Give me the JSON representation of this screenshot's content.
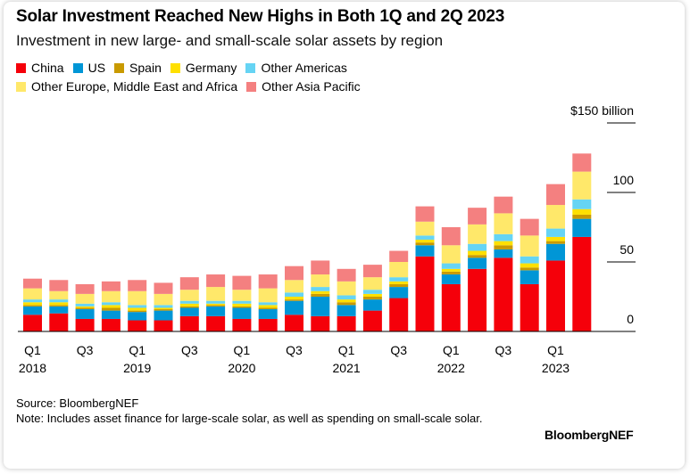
{
  "chart_data": {
    "type": "bar",
    "stacked": true,
    "title": "Solar Investment Reached New Highs in Both 1Q and 2Q 2023",
    "subtitle": "Investment in new large- and small-scale solar assets by region",
    "ylabel": "",
    "ylim": [
      0,
      150
    ],
    "yticks": [
      {
        "value": 150,
        "label": "$150 billion"
      },
      {
        "value": 100,
        "label": "100"
      },
      {
        "value": 50,
        "label": "50"
      },
      {
        "value": 0,
        "label": "0"
      }
    ],
    "grid": false,
    "legend_position": "top-left",
    "categories": [
      "1Q 2018",
      "2Q 2018",
      "3Q 2018",
      "4Q 2018",
      "1Q 2019",
      "2Q 2019",
      "3Q 2019",
      "4Q 2019",
      "1Q 2020",
      "2Q 2020",
      "3Q 2020",
      "4Q 2020",
      "1Q 2021",
      "2Q 2021",
      "3Q 2021",
      "4Q 2021",
      "1Q 2022",
      "2Q 2022",
      "3Q 2022",
      "4Q 2022",
      "1Q 2023",
      "2Q 2023"
    ],
    "x_tick_labels": [
      {
        "index": 0,
        "quarter": "Q1",
        "year": "2018"
      },
      {
        "index": 2,
        "quarter": "Q3",
        "year": ""
      },
      {
        "index": 4,
        "quarter": "Q1",
        "year": "2019"
      },
      {
        "index": 6,
        "quarter": "Q3",
        "year": ""
      },
      {
        "index": 8,
        "quarter": "Q1",
        "year": "2020"
      },
      {
        "index": 10,
        "quarter": "Q3",
        "year": ""
      },
      {
        "index": 12,
        "quarter": "Q1",
        "year": "2021"
      },
      {
        "index": 14,
        "quarter": "Q3",
        "year": ""
      },
      {
        "index": 16,
        "quarter": "Q1",
        "year": "2022"
      },
      {
        "index": 18,
        "quarter": "Q3",
        "year": ""
      },
      {
        "index": 20,
        "quarter": "Q1",
        "year": "2023"
      }
    ],
    "series": [
      {
        "name": "China",
        "color": "#f5000a",
        "values": [
          12,
          13,
          9,
          9,
          8,
          8,
          11,
          11,
          9,
          9,
          12,
          11,
          11,
          15,
          24,
          54,
          34,
          45,
          53,
          34,
          51,
          68
        ]
      },
      {
        "name": "US",
        "color": "#0096d6",
        "values": [
          6,
          5,
          7,
          6,
          6,
          7,
          6,
          7,
          8,
          7,
          10,
          14,
          8,
          8,
          8,
          8,
          7,
          8,
          6,
          10,
          12,
          13
        ]
      },
      {
        "name": "Spain",
        "color": "#c99a00",
        "values": [
          1,
          1,
          1,
          2,
          1,
          1,
          1,
          1,
          1,
          1,
          1,
          2,
          2,
          2,
          2,
          2,
          2,
          2,
          3,
          2,
          2,
          3
        ]
      },
      {
        "name": "Germany",
        "color": "#ffe000",
        "values": [
          2,
          2,
          1,
          2,
          2,
          1,
          2,
          1,
          2,
          2,
          2,
          2,
          2,
          2,
          2,
          2,
          2,
          3,
          3,
          3,
          3,
          4
        ]
      },
      {
        "name": "Other Americas",
        "color": "#66d4f4",
        "values": [
          2,
          2,
          2,
          2,
          2,
          2,
          2,
          2,
          2,
          2,
          3,
          3,
          3,
          3,
          3,
          3,
          4,
          5,
          5,
          5,
          6,
          7
        ]
      },
      {
        "name": "Other Europe, Middle East and Africa",
        "color": "#ffe86a",
        "values": [
          8,
          6,
          7,
          8,
          10,
          8,
          8,
          10,
          8,
          10,
          9,
          9,
          10,
          9,
          11,
          10,
          13,
          14,
          15,
          15,
          17,
          20
        ]
      },
      {
        "name": "Other Asia Pacific",
        "color": "#f48080",
        "values": [
          7,
          8,
          7,
          7,
          8,
          8,
          9,
          9,
          10,
          10,
          10,
          10,
          9,
          9,
          8,
          11,
          13,
          12,
          12,
          12,
          15,
          13
        ]
      }
    ]
  },
  "source": "Source: BloombergNEF",
  "note": "Note: Includes asset finance for large-scale solar, as well as spending on small-scale solar.",
  "brand": "BloombergNEF"
}
